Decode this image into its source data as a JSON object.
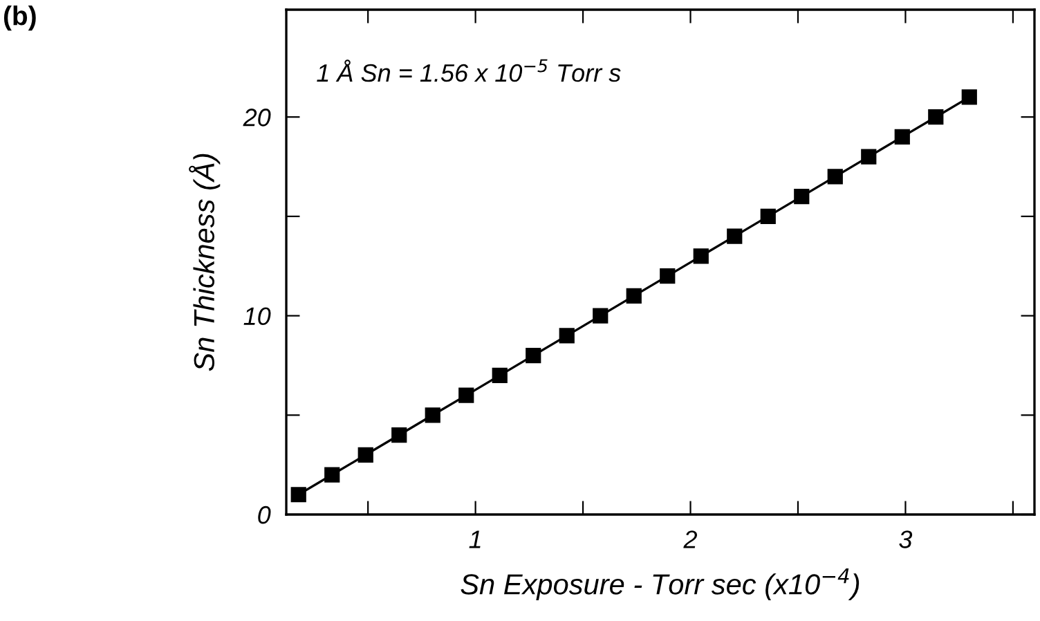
{
  "chart_data": {
    "type": "line",
    "title": "(b)",
    "xlabel": "Sn Exposure - Torr sec (x10$^{−4}$)",
    "ylabel": "Sn Thickness (Å)",
    "annotations": [
      "1 Å Sn = 1.56 x 10$^{−5}$ Torr s"
    ],
    "x": [
      0.177,
      0.333,
      0.489,
      0.645,
      0.801,
      0.957,
      1.113,
      1.269,
      1.425,
      1.581,
      1.737,
      1.893,
      2.049,
      2.205,
      2.361,
      2.517,
      2.673,
      2.829,
      2.985,
      3.141,
      3.297
    ],
    "series": [
      {
        "color": "#000000",
        "values": [
          1,
          2,
          3,
          4,
          5,
          6,
          7,
          8,
          9,
          10,
          11,
          12,
          13,
          14,
          15,
          16,
          17,
          18,
          19,
          20,
          21
        ]
      }
    ],
    "marker": "square",
    "line_style": "solid",
    "grid": false,
    "legend": false,
    "xlim": [
      0.12,
      3.6
    ],
    "xticks": [
      {
        "value": 0.5,
        "label": null
      },
      1,
      {
        "value": 1.5,
        "label": null
      },
      2,
      {
        "value": 2.5,
        "label": null
      },
      3,
      {
        "value": 3.5,
        "label": null
      }
    ],
    "ylim": [
      0,
      25.4
    ],
    "yticks": [
      0,
      {
        "value": 5,
        "label": null
      },
      10,
      {
        "value": 15,
        "label": null
      },
      20
    ]
  }
}
